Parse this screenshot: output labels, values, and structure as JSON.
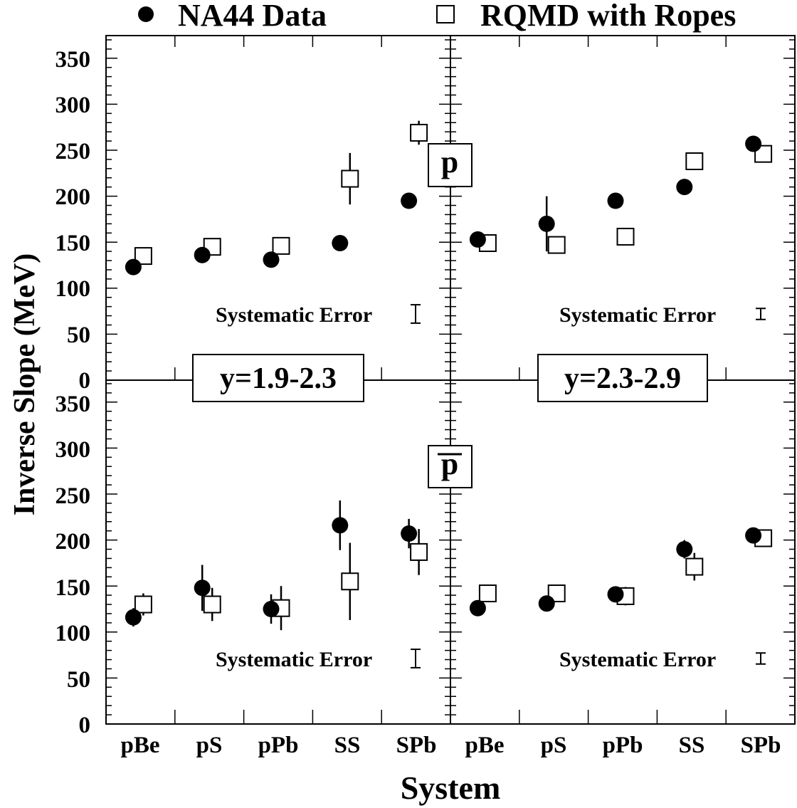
{
  "legend": {
    "data_label": "NA44 Data",
    "model_label": "RQMD with Ropes"
  },
  "axes": {
    "ylabel": "Inverse Slope (MeV)",
    "xlabel": "System",
    "categories": [
      "pBe",
      "pS",
      "pPb",
      "SS",
      "SPb"
    ],
    "yticks": [
      "0",
      "50",
      "100",
      "150",
      "200",
      "250",
      "300",
      "350"
    ]
  },
  "labels": {
    "rapidity_left": "y=1.9-2.3",
    "rapidity_right": "y=2.3-2.9",
    "particle_top": "p",
    "particle_bottom": "p",
    "systematic_error": "Systematic Error"
  },
  "colors": {
    "ink": "#000000",
    "background": "#ffffff"
  },
  "chart_data": [
    {
      "type": "scatter",
      "panel": "top-left",
      "particle": "p",
      "rapidity": "y=1.9-2.3",
      "categories": [
        "pBe",
        "pS",
        "pPb",
        "SS",
        "SPb"
      ],
      "ylim": [
        0,
        370
      ],
      "series": [
        {
          "name": "NA44 Data",
          "values": [
            123,
            136,
            131,
            149,
            195
          ],
          "errors": [
            0,
            0,
            0,
            0,
            0
          ]
        },
        {
          "name": "RQMD with Ropes",
          "values": [
            135,
            145,
            146,
            219,
            269
          ],
          "errors": [
            0,
            0,
            0,
            28,
            13
          ]
        }
      ],
      "systematic_error": 10
    },
    {
      "type": "scatter",
      "panel": "top-right",
      "particle": "p",
      "rapidity": "y=2.3-2.9",
      "categories": [
        "pBe",
        "pS",
        "pPb",
        "SS",
        "SPb"
      ],
      "ylim": [
        0,
        370
      ],
      "series": [
        {
          "name": "NA44 Data",
          "values": [
            153,
            170,
            195,
            210,
            257
          ],
          "errors": [
            0,
            30,
            0,
            0,
            0
          ]
        },
        {
          "name": "RQMD with Ropes",
          "values": [
            149,
            147,
            156,
            238,
            246
          ],
          "errors": [
            0,
            0,
            0,
            0,
            0
          ]
        }
      ],
      "systematic_error": 6
    },
    {
      "type": "scatter",
      "panel": "bottom-left",
      "particle": "p",
      "rapidity": "y=1.9-2.3",
      "categories": [
        "pBe",
        "pS",
        "pPb",
        "SS",
        "SPb"
      ],
      "ylim": [
        0,
        370
      ],
      "series": [
        {
          "name": "NA44 Data",
          "values": [
            116,
            148,
            125,
            216,
            207
          ],
          "errors": [
            10,
            25,
            16,
            27,
            16
          ]
        },
        {
          "name": "RQMD with Ropes",
          "values": [
            130,
            130,
            126,
            155,
            187
          ],
          "errors": [
            12,
            18,
            24,
            42,
            25
          ]
        }
      ],
      "systematic_error": 10
    },
    {
      "type": "scatter",
      "panel": "bottom-right",
      "particle": "p",
      "rapidity": "y=2.3-2.9",
      "categories": [
        "pBe",
        "pS",
        "pPb",
        "SS",
        "SPb"
      ],
      "ylim": [
        0,
        370
      ],
      "series": [
        {
          "name": "NA44 Data",
          "values": [
            126,
            131,
            141,
            190,
            205
          ],
          "errors": [
            0,
            0,
            0,
            10,
            0
          ]
        },
        {
          "name": "RQMD with Ropes",
          "values": [
            142,
            142,
            139,
            171,
            202
          ],
          "errors": [
            0,
            0,
            10,
            15,
            0
          ]
        }
      ],
      "systematic_error": 6
    }
  ]
}
